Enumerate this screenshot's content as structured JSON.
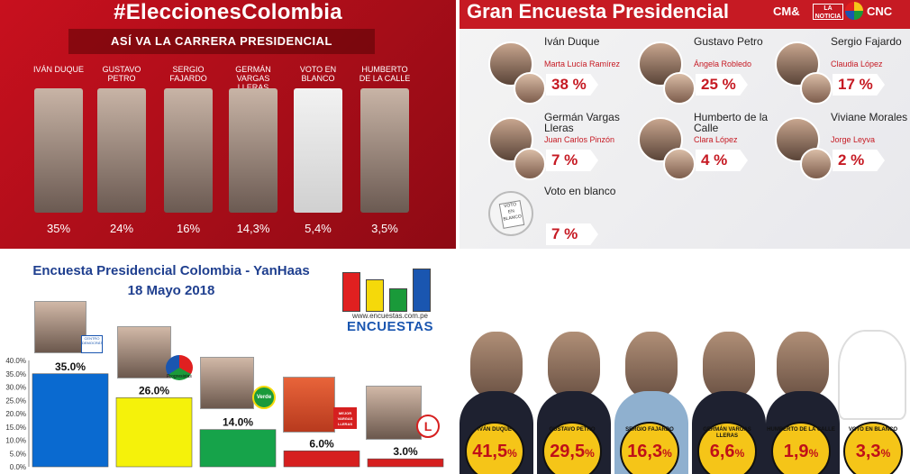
{
  "panel1": {
    "hashtag": "#EleccionesColombia",
    "subtitle": "ASÍ VA LA CARRERA PRESIDENCIAL",
    "candidates": [
      {
        "name": "IVÁN DUQUE",
        "pct": "35%"
      },
      {
        "name": "GUSTAVO PETRO",
        "pct": "24%"
      },
      {
        "name": "SERGIO FAJARDO",
        "pct": "16%"
      },
      {
        "name": "GERMÁN VARGAS LLERAS",
        "pct": "14,3%"
      },
      {
        "name": "VOTO EN BLANCO",
        "pct": "5,4%"
      },
      {
        "name": "HUMBERTO DE LA CALLE",
        "pct": "3,5%"
      }
    ]
  },
  "panel2": {
    "title": "Gran Encuesta Presidencial",
    "logos": [
      "CM&",
      "LA NOTICIA",
      "CNC"
    ],
    "candidates": [
      {
        "name": "Iván Duque",
        "vp": "Marta Lucía Ramírez",
        "pct": "38 %"
      },
      {
        "name": "Gustavo Petro",
        "vp": "Ángela Robledo",
        "pct": "25 %"
      },
      {
        "name": "Sergio Fajardo",
        "vp": "Claudia López",
        "pct": "17 %"
      },
      {
        "name": "Germán Vargas Lleras",
        "vp": "Juan Carlos Pinzón",
        "pct": "7 %"
      },
      {
        "name": "Humberto de la Calle",
        "vp": "Clara López",
        "pct": "4 %"
      },
      {
        "name": "Viviane Morales",
        "vp": "Jorge Leyva",
        "pct": "2 %"
      },
      {
        "name": "Voto en blanco",
        "vp": "",
        "pct": "7 %"
      }
    ],
    "ballot_text": "VOTO EN BLANCO"
  },
  "panel3": {
    "title1": "Encuesta Presidencial Colombia - YanHaas",
    "title2": "18 Mayo 2018",
    "brand_url": "www.encuestas.com.pe",
    "brand_word": "ENCUESTAS",
    "brand_bar_colors": [
      "#e02020",
      "#f5d90a",
      "#1a9a3a",
      "#1a56b0"
    ],
    "party_labels": [
      "CENTRO DEMOCRÁTICO",
      "Progresistas",
      "Verde",
      "MEJOR VARGAS LLERAS",
      "L"
    ]
  },
  "chart_data": [
    {
      "type": "bar",
      "title": "Encuesta Presidencial Colombia - YanHaas",
      "subtitle": "18 Mayo 2018",
      "categories": [
        "",
        "",
        "",
        "",
        ""
      ],
      "values": [
        35.0,
        26.0,
        14.0,
        6.0,
        3.0
      ],
      "value_labels": [
        "35.0%",
        "26.0%",
        "14.0%",
        "6.0%",
        "3.0%"
      ],
      "colors": [
        "#0a6ad0",
        "#f5f20a",
        "#16a34a",
        "#d61f1f",
        "#d61f1f"
      ],
      "y_ticks": [
        "0.0%",
        "5.0%",
        "10.0%",
        "15.0%",
        "20.0%",
        "25.0%",
        "30.0%",
        "35.0%",
        "40.0%"
      ],
      "ylim": [
        0,
        40
      ],
      "grid": false
    },
    {
      "type": "table",
      "entries": [
        {
          "name": "IVÁN DUQUE",
          "pct": "41,5"
        },
        {
          "name": "GUSTAVO PETRO",
          "pct": "29,5"
        },
        {
          "name": "SERGIO FAJARDO",
          "pct": "16,3"
        },
        {
          "name": "GERMÁN VARGAS LLERAS",
          "pct": "6,6"
        },
        {
          "name": "HUMBERTO DE LA CALLE",
          "pct": "1,9"
        },
        {
          "name": "VOTO EN BLANCO",
          "pct": "3,3"
        }
      ],
      "unit": "%"
    }
  ]
}
